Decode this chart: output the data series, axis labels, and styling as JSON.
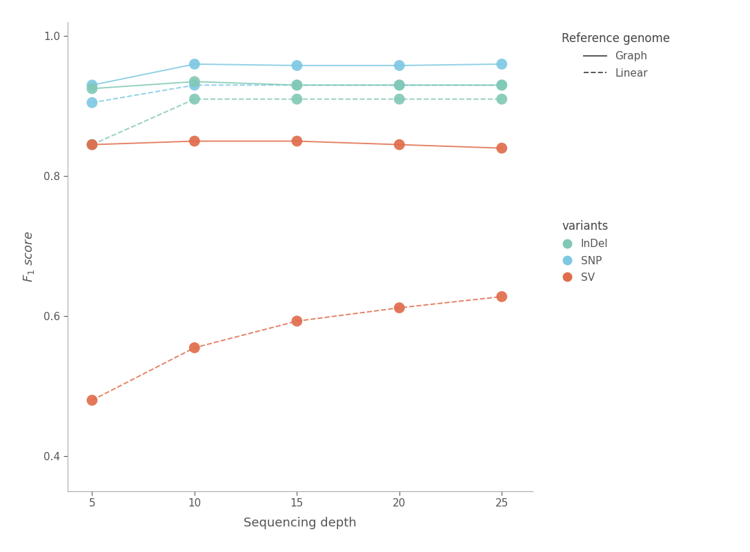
{
  "x": [
    5,
    10,
    15,
    20,
    25
  ],
  "series": {
    "SNP_Graph": [
      0.93,
      0.96,
      0.958,
      0.958,
      0.96
    ],
    "SNP_Linear": [
      0.905,
      0.93,
      0.93,
      0.93,
      0.93
    ],
    "InDel_Graph": [
      0.925,
      0.935,
      0.93,
      0.93,
      0.93
    ],
    "InDel_Linear": [
      0.845,
      0.91,
      0.91,
      0.91,
      0.91
    ],
    "SV_Graph": [
      0.845,
      0.85,
      0.85,
      0.845,
      0.84
    ],
    "SV_Linear": [
      0.48,
      0.555,
      0.593,
      0.612,
      0.628
    ]
  },
  "colors": {
    "SNP": "#7EC8E3",
    "InDel": "#82C9B5",
    "SV": "#E06C4B"
  },
  "xlabel": "Sequencing depth",
  "ylabel": "$F_1$ score",
  "ylim": [
    0.35,
    1.02
  ],
  "yticks": [
    0.4,
    0.6,
    0.8,
    1.0
  ],
  "xticks": [
    5,
    10,
    15,
    20,
    25
  ],
  "bg_color": "#ffffff",
  "legend_title_ref": "Reference genome",
  "legend_title_var": "variants",
  "dot_size": 130,
  "linewidth": 1.4
}
